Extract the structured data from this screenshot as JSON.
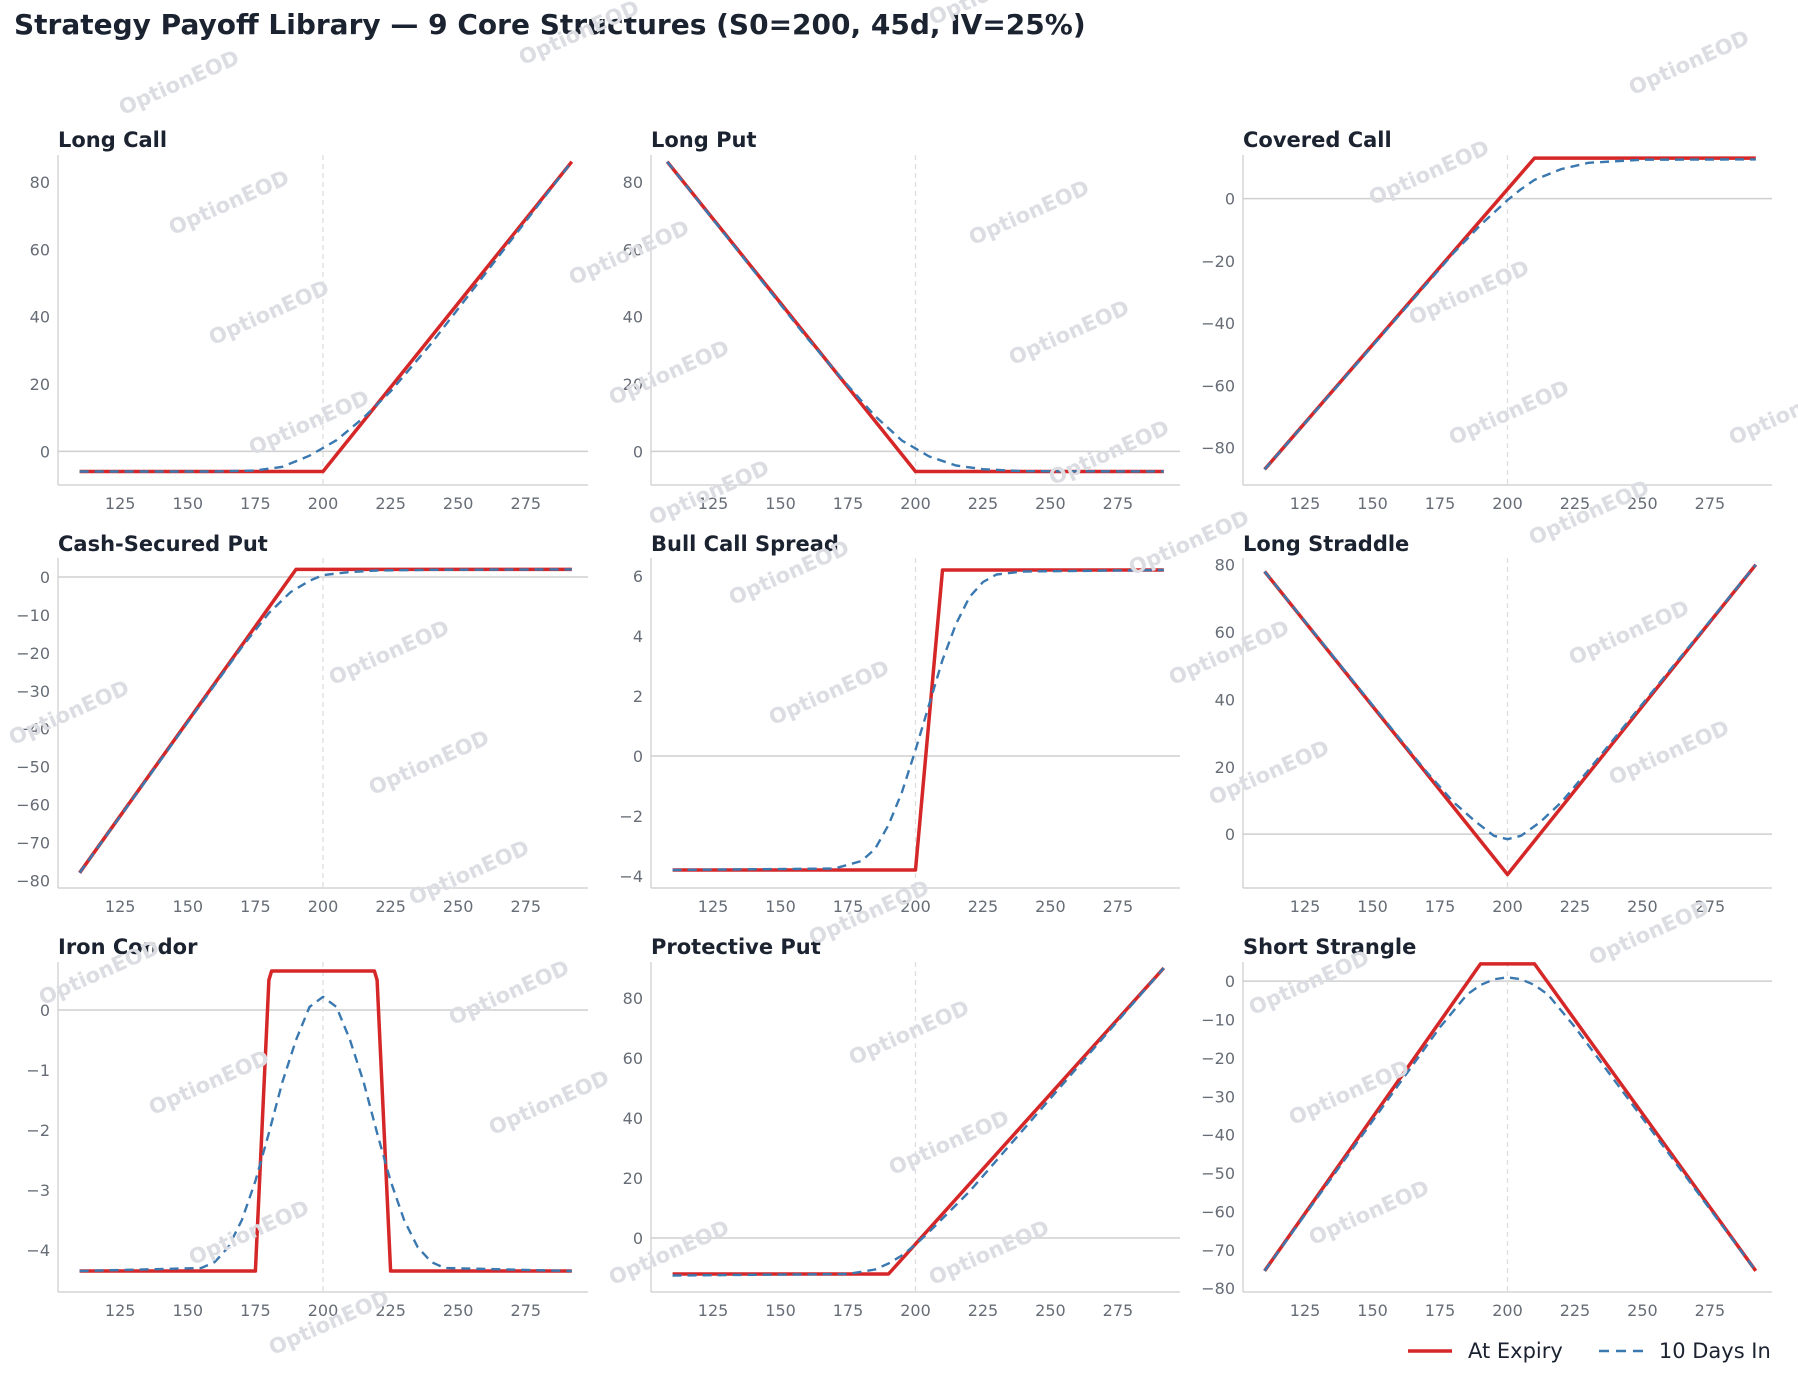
{
  "title": "Strategy Payoff Library — 9 Core Structures (S0=200, 45d, IV=25%)",
  "watermark": "OptionEOD",
  "legend": {
    "at_expiry": "At Expiry",
    "days_in": "10 Days In"
  },
  "colors": {
    "expiry": "#d62728",
    "days_in": "#3a78b0",
    "zero_line": "#cfcfcf",
    "spot_line": "#dddddd",
    "axis": "#cccccc",
    "watermark": "#dcdde2"
  },
  "chart_data": [
    {
      "type": "line",
      "title": "Long Call",
      "spot": 200,
      "xlim": [
        102,
        298
      ],
      "ylim": [
        -10,
        88
      ],
      "xticks": [
        125,
        150,
        175,
        200,
        225,
        250,
        275
      ],
      "yticks": [
        0,
        20,
        40,
        60,
        80
      ],
      "series": [
        {
          "name": "At Expiry",
          "x": [
            110,
            200,
            292
          ],
          "y": [
            -6,
            -6,
            86
          ]
        },
        {
          "name": "10 Days In",
          "x": [
            110,
            160,
            175,
            185,
            195,
            205,
            215,
            225,
            240,
            292
          ],
          "y": [
            -6,
            -6,
            -5.7,
            -4.6,
            -1.3,
            3.3,
            10,
            17.8,
            32,
            86
          ]
        }
      ]
    },
    {
      "type": "line",
      "title": "Long Put",
      "spot": 200,
      "xlim": [
        102,
        298
      ],
      "ylim": [
        -10,
        88
      ],
      "xticks": [
        125,
        150,
        175,
        200,
        225,
        250,
        275
      ],
      "yticks": [
        0,
        20,
        40,
        60,
        80
      ],
      "series": [
        {
          "name": "At Expiry",
          "x": [
            108,
            200,
            292
          ],
          "y": [
            86,
            -6,
            -6
          ]
        },
        {
          "name": "10 Days In",
          "x": [
            108,
            160,
            175,
            185,
            195,
            205,
            215,
            225,
            240,
            292
          ],
          "y": [
            86,
            33.5,
            19.5,
            10.5,
            3.2,
            -1.5,
            -4.2,
            -5.3,
            -5.9,
            -6
          ]
        }
      ]
    },
    {
      "type": "line",
      "title": "Covered Call",
      "spot": 200,
      "xlim": [
        102,
        298
      ],
      "ylim": [
        -92,
        14
      ],
      "xticks": [
        125,
        150,
        175,
        200,
        225,
        250,
        275
      ],
      "yticks": [
        0,
        -20,
        -40,
        -60,
        -80
      ],
      "series": [
        {
          "name": "At Expiry",
          "x": [
            110,
            210,
            292
          ],
          "y": [
            -87,
            13,
            13
          ]
        },
        {
          "name": "10 Days In",
          "x": [
            110,
            180,
            190,
            200,
            205,
            210,
            220,
            230,
            250,
            292
          ],
          "y": [
            -87,
            -17.5,
            -8.5,
            -0.5,
            3,
            6,
            9.5,
            11.5,
            12.5,
            12.6
          ]
        }
      ]
    },
    {
      "type": "line",
      "title": "Cash-Secured Put",
      "spot": 200,
      "xlim": [
        102,
        298
      ],
      "ylim": [
        -82,
        5
      ],
      "xticks": [
        125,
        150,
        175,
        200,
        225,
        250,
        275
      ],
      "yticks": [
        0,
        -10,
        -20,
        -30,
        -40,
        -50,
        -60,
        -70,
        -80
      ],
      "series": [
        {
          "name": "At Expiry",
          "x": [
            110,
            190,
            292
          ],
          "y": [
            -78,
            2,
            2
          ]
        },
        {
          "name": "10 Days In",
          "x": [
            110,
            170,
            180,
            188,
            195,
            200,
            210,
            220,
            240,
            292
          ],
          "y": [
            -78,
            -18.5,
            -9.5,
            -4,
            -1,
            0.5,
            1.3,
            1.7,
            1.9,
            2
          ]
        }
      ]
    },
    {
      "type": "line",
      "title": "Bull Call Spread",
      "spot": 200,
      "xlim": [
        102,
        298
      ],
      "ylim": [
        -4.4,
        6.6
      ],
      "xticks": [
        125,
        150,
        175,
        200,
        225,
        250,
        275
      ],
      "yticks": [
        6,
        4,
        2,
        0,
        -2,
        -4
      ],
      "series": [
        {
          "name": "At Expiry",
          "x": [
            110,
            200,
            210,
            292
          ],
          "y": [
            -3.8,
            -3.8,
            6.2,
            6.2
          ]
        },
        {
          "name": "10 Days In",
          "x": [
            110,
            170,
            180,
            185,
            190,
            195,
            200,
            205,
            210,
            215,
            220,
            225,
            230,
            240,
            292
          ],
          "y": [
            -3.8,
            -3.75,
            -3.5,
            -3.1,
            -2.3,
            -1.2,
            0.2,
            1.7,
            3.2,
            4.4,
            5.3,
            5.8,
            6.05,
            6.15,
            6.2
          ]
        }
      ]
    },
    {
      "type": "line",
      "title": "Long Straddle",
      "spot": 200,
      "xlim": [
        102,
        298
      ],
      "ylim": [
        -16,
        82
      ],
      "xticks": [
        125,
        150,
        175,
        200,
        225,
        250,
        275
      ],
      "yticks": [
        0,
        20,
        40,
        60,
        80
      ],
      "series": [
        {
          "name": "At Expiry",
          "x": [
            110,
            200,
            292
          ],
          "y": [
            78,
            -12,
            80
          ]
        },
        {
          "name": "10 Days In",
          "x": [
            110,
            170,
            180,
            188,
            195,
            200,
            205,
            212,
            220,
            230,
            292
          ],
          "y": [
            78,
            18.5,
            9.5,
            3.8,
            -0.5,
            -1.5,
            -0.5,
            3.5,
            9.5,
            19,
            80
          ]
        }
      ]
    },
    {
      "type": "line",
      "title": "Iron Condor",
      "spot": 200,
      "xlim": [
        102,
        298
      ],
      "ylim": [
        -4.7,
        0.8
      ],
      "xticks": [
        125,
        150,
        175,
        200,
        225,
        250,
        275
      ],
      "yticks": [
        0,
        -1,
        -2,
        -3,
        -4
      ],
      "series": [
        {
          "name": "At Expiry",
          "x": [
            110,
            175,
            180,
            181,
            219,
            220,
            225,
            292
          ],
          "y": [
            -4.35,
            -4.35,
            0.5,
            0.65,
            0.65,
            0.5,
            -4.35,
            -4.35
          ]
        },
        {
          "name": "10 Days In",
          "x": [
            110,
            155,
            160,
            165,
            170,
            175,
            180,
            185,
            190,
            195,
            200,
            205,
            210,
            215,
            220,
            225,
            230,
            235,
            240,
            245,
            292
          ],
          "y": [
            -4.35,
            -4.3,
            -4.2,
            -3.95,
            -3.5,
            -2.85,
            -2.05,
            -1.2,
            -0.5,
            0.05,
            0.22,
            0.05,
            -0.5,
            -1.2,
            -2.05,
            -2.85,
            -3.5,
            -3.95,
            -4.2,
            -4.3,
            -4.35
          ]
        }
      ]
    },
    {
      "type": "line",
      "title": "Protective Put",
      "spot": 200,
      "xlim": [
        102,
        298
      ],
      "ylim": [
        -18,
        92
      ],
      "xticks": [
        125,
        150,
        175,
        200,
        225,
        250,
        275
      ],
      "yticks": [
        0,
        20,
        40,
        60,
        80
      ],
      "series": [
        {
          "name": "At Expiry",
          "x": [
            110,
            190,
            292
          ],
          "y": [
            -12,
            -12,
            90
          ]
        },
        {
          "name": "10 Days In",
          "x": [
            110,
            175,
            185,
            190,
            195,
            200,
            205,
            210,
            220,
            292
          ],
          "y": [
            -12.5,
            -12,
            -10.5,
            -8.5,
            -5.8,
            -2.2,
            2,
            6.5,
            15.5,
            90
          ]
        }
      ]
    },
    {
      "type": "line",
      "title": "Short Strangle",
      "spot": 200,
      "xlim": [
        102,
        298
      ],
      "ylim": [
        -81,
        5
      ],
      "xticks": [
        125,
        150,
        175,
        200,
        225,
        250,
        275
      ],
      "yticks": [
        0,
        -10,
        -20,
        -30,
        -40,
        -50,
        -60,
        -70,
        -80
      ],
      "series": [
        {
          "name": "At Expiry",
          "x": [
            110,
            190,
            210,
            292
          ],
          "y": [
            -75.5,
            4.5,
            4.5,
            -75.5
          ]
        },
        {
          "name": "10 Days In",
          "x": [
            110,
            175,
            185,
            190,
            195,
            200,
            205,
            210,
            215,
            225,
            292
          ],
          "y": [
            -75.5,
            -12,
            -3.5,
            -1,
            0.5,
            1,
            0.5,
            -1,
            -3.5,
            -12,
            -75.5
          ]
        }
      ]
    }
  ]
}
